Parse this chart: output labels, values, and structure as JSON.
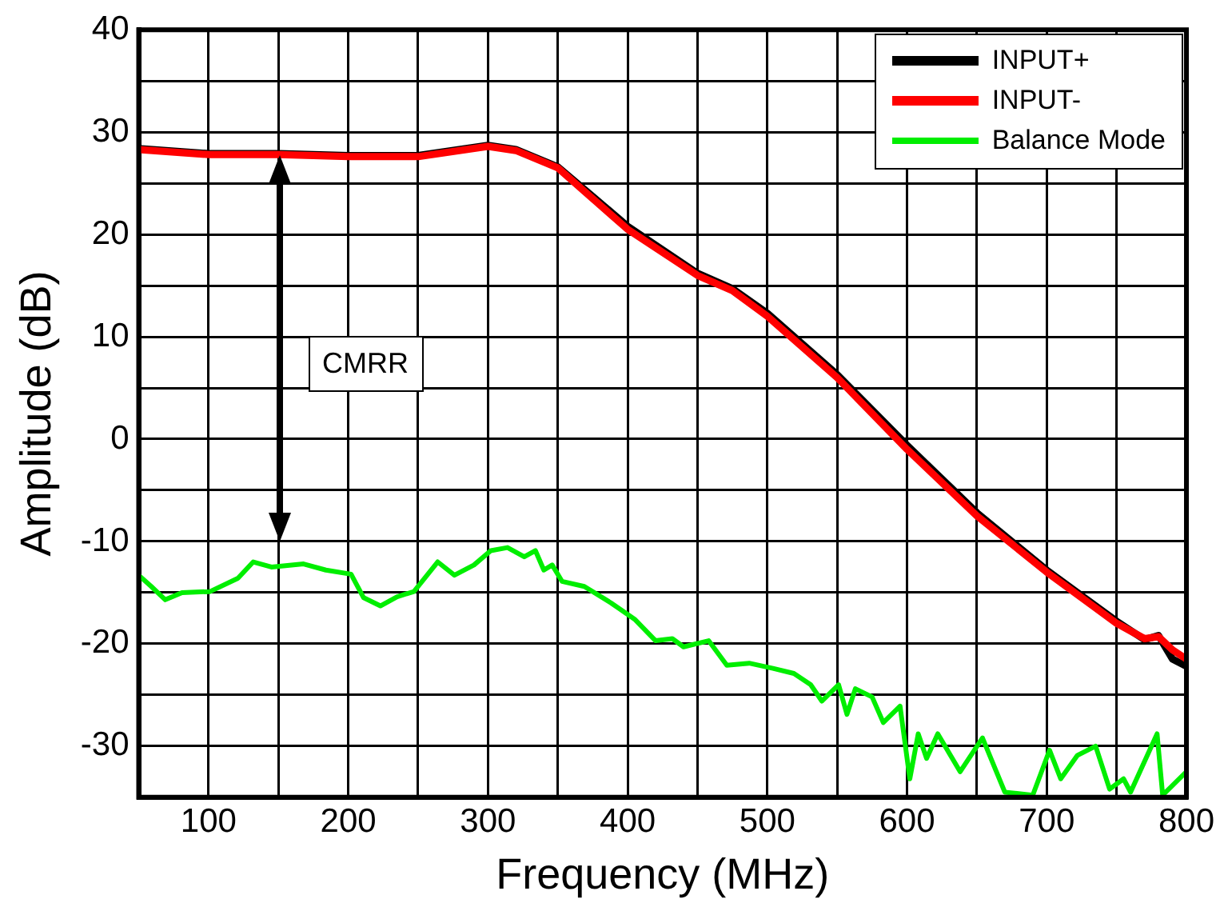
{
  "chart_data": {
    "type": "line",
    "xlabel": "Frequency (MHz)",
    "ylabel": "Amplitude (dB)",
    "xlim": [
      50,
      800
    ],
    "xticks": [
      {
        "value": 50,
        "label": null
      },
      100,
      {
        "value": 150,
        "label": null
      },
      200,
      {
        "value": 250,
        "label": null
      },
      300,
      {
        "value": 350,
        "label": null
      },
      400,
      {
        "value": 450,
        "label": null
      },
      500,
      {
        "value": 550,
        "label": null
      },
      600,
      {
        "value": 650,
        "label": null
      },
      700,
      {
        "value": 750,
        "label": null
      },
      800
    ],
    "ylim": [
      -35,
      40
    ],
    "yticks": [
      {
        "value": -35,
        "label": null
      },
      -30,
      {
        "value": -25,
        "label": null
      },
      -20,
      {
        "value": -15,
        "label": null
      },
      -10,
      {
        "value": -5,
        "label": null
      },
      0,
      {
        "value": 5,
        "label": null
      },
      10,
      {
        "value": 15,
        "label": null
      },
      20,
      {
        "value": 25,
        "label": null
      },
      30,
      {
        "value": 35,
        "label": null
      },
      40
    ],
    "grid": true,
    "legend": "top right",
    "line_style": "solid",
    "marker": "none",
    "annotations": [
      "CMRR"
    ],
    "series": [
      {
        "name": "INPUT+",
        "color": "#000000",
        "x": [
          50,
          100,
          150,
          200,
          250,
          300,
          320,
          350,
          375,
          400,
          450,
          475,
          500,
          550,
          600,
          650,
          700,
          750,
          770,
          780,
          790,
          800
        ],
        "values": [
          28.4,
          27.9,
          27.9,
          27.7,
          27.7,
          28.7,
          28.3,
          26.6,
          23.7,
          20.8,
          16.2,
          14.7,
          12.3,
          6.3,
          -0.6,
          -7.2,
          -12.8,
          -17.8,
          -19.6,
          -19.2,
          -21.5,
          -22.2
        ]
      },
      {
        "name": "INPUT-",
        "color": "#ff0000",
        "x": [
          50,
          100,
          150,
          200,
          250,
          300,
          320,
          350,
          375,
          400,
          450,
          475,
          500,
          550,
          600,
          650,
          700,
          750,
          770,
          780,
          790,
          800
        ],
        "values": [
          28.3,
          27.8,
          27.8,
          27.6,
          27.6,
          28.6,
          28.2,
          26.5,
          23.5,
          20.5,
          16,
          14.5,
          12,
          6,
          -1,
          -7.5,
          -13,
          -18,
          -19.5,
          -19.3,
          -20.6,
          -21.5
        ]
      },
      {
        "name": "Balance Mode",
        "color": "#00ee00",
        "x": [
          50,
          59,
          69,
          81,
          101,
          121,
          132,
          145,
          168,
          184,
          202,
          211,
          223,
          235,
          247,
          264,
          276,
          290,
          302,
          314,
          326,
          334,
          340,
          346,
          353,
          369,
          388,
          405,
          420,
          432,
          440,
          458,
          471,
          487,
          504,
          519,
          531,
          539,
          551,
          557,
          563,
          575,
          583,
          595,
          602,
          608,
          614,
          622,
          638,
          654,
          670,
          690,
          702,
          710,
          722,
          735,
          745,
          755,
          760,
          779,
          783,
          800
        ],
        "values": [
          -13.3,
          -14.4,
          -15.7,
          -15,
          -14.9,
          -13.6,
          -12,
          -12.5,
          -12.2,
          -12.8,
          -13.2,
          -15.5,
          -16.3,
          -15.4,
          -14.9,
          -12,
          -13.3,
          -12.3,
          -10.9,
          -10.6,
          -11.5,
          -10.9,
          -12.8,
          -12.3,
          -13.9,
          -14.4,
          -16,
          -17.6,
          -19.7,
          -19.5,
          -20.3,
          -19.7,
          -22.1,
          -21.9,
          -22.4,
          -22.9,
          -24,
          -25.6,
          -24,
          -26.9,
          -24.4,
          -25.2,
          -27.7,
          -26.1,
          -33.2,
          -28.8,
          -31.2,
          -28.8,
          -32.5,
          -29.2,
          -34.5,
          -34.8,
          -30.4,
          -33.2,
          -30.9,
          -30,
          -34.2,
          -33.2,
          -34.5,
          -28.8,
          -34.8,
          -32.5
        ]
      }
    ]
  }
}
